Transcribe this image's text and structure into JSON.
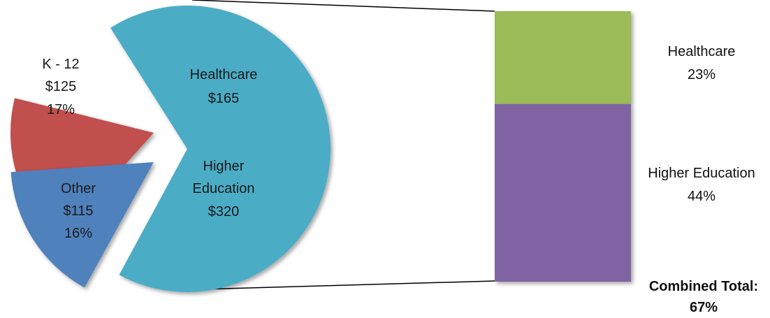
{
  "chart_data": {
    "type": "pie",
    "pie": {
      "slices": [
        {
          "name": "Healthcare / Higher Education",
          "line1": "Healthcare",
          "line2": "$165",
          "line3": "Higher",
          "line4": "Education",
          "line5": "$320",
          "value": 485,
          "color": "#4BACC6"
        },
        {
          "name": "Other",
          "line1": "Other",
          "line2": "$115",
          "line3": "16%",
          "value": 115,
          "color": "#4F81BD"
        },
        {
          "name": "K - 12",
          "line1": "K - 12",
          "line2": "$125",
          "line3": "17%",
          "value": 125,
          "color": "#C0504D"
        }
      ]
    },
    "stacked_bar": {
      "segments": [
        {
          "name": "Healthcare",
          "percent": 23,
          "label": "Healthcare",
          "percent_label": "23%",
          "color": "#9BBB59"
        },
        {
          "name": "Higher Education",
          "percent": 44,
          "label": "Higher Education",
          "percent_label": "44%",
          "color": "#8064A2"
        }
      ],
      "total_label": "Combined Total:",
      "total_value": "67%"
    }
  }
}
